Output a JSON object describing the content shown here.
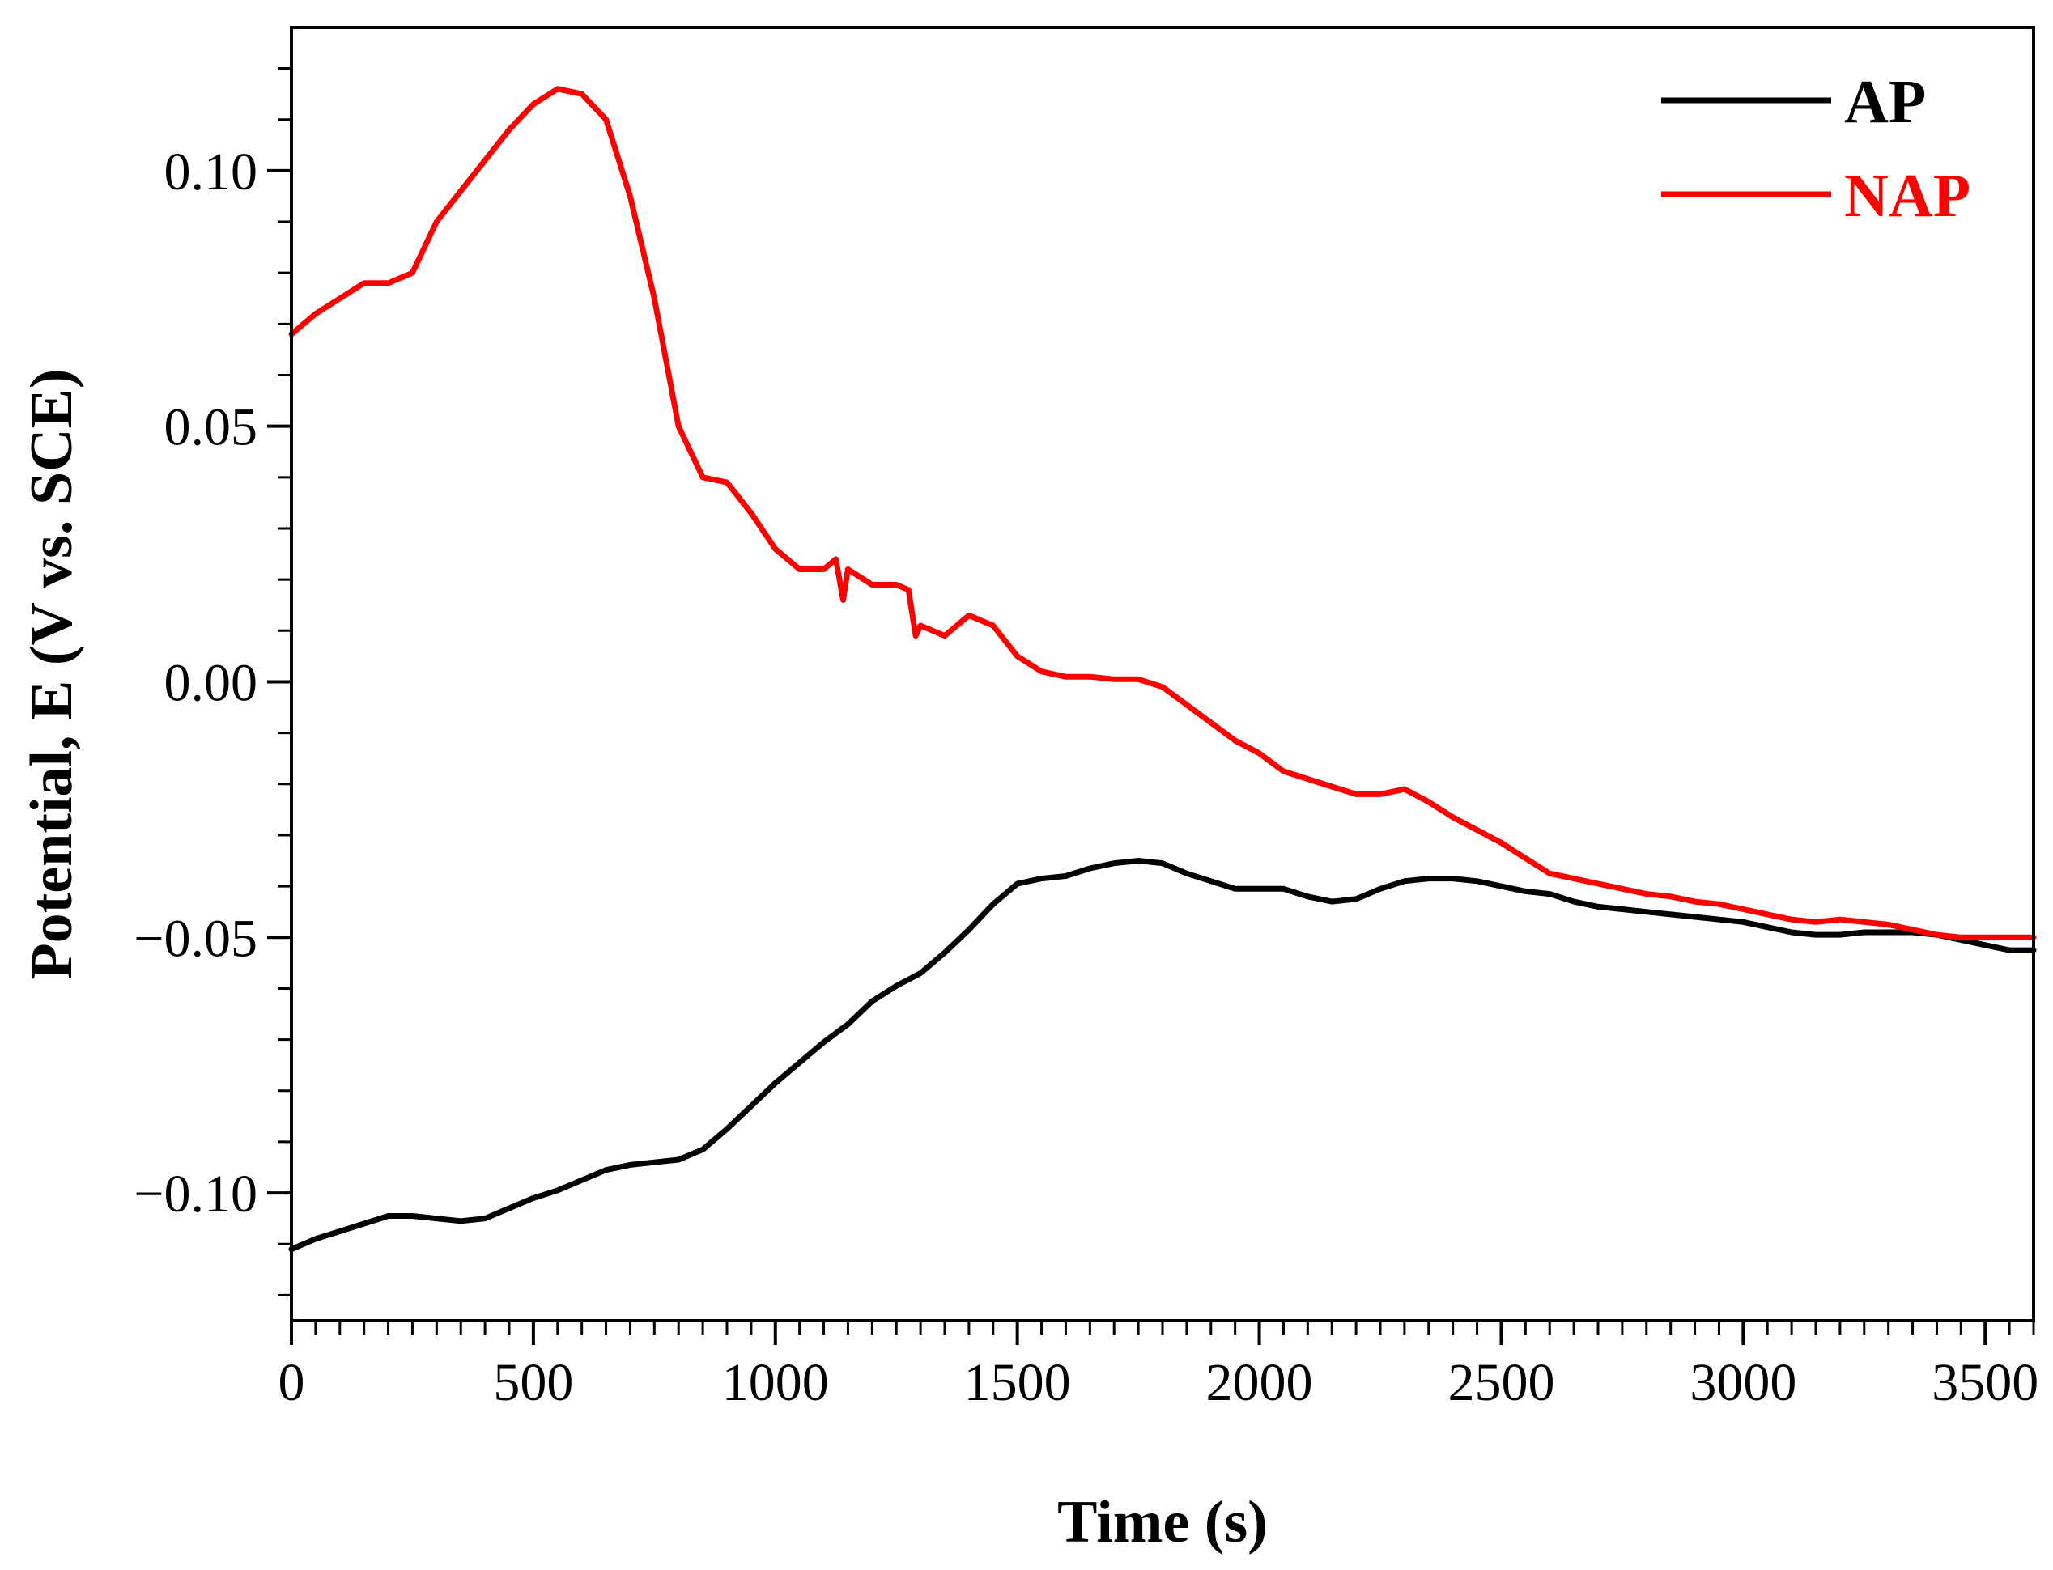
{
  "chart_data": {
    "type": "line",
    "title": "",
    "xlabel": "Time (s)",
    "ylabel": "Potential, E (V vs. SCE)",
    "xlim": [
      0,
      3600
    ],
    "ylim": [
      -0.125,
      0.128
    ],
    "x_ticks": [
      0,
      500,
      1000,
      1500,
      2000,
      2500,
      3000,
      3500
    ],
    "x_tick_labels": [
      "0",
      "500",
      "1000",
      "1500",
      "2000",
      "2500",
      "3000",
      "3500"
    ],
    "y_ticks": [
      0.1,
      0.05,
      0.0,
      -0.05,
      -0.1
    ],
    "y_tick_labels": [
      "0.10",
      "0.05",
      "0.00",
      "−0.05",
      "−0.10"
    ],
    "grid": false,
    "legend_position": "top-right",
    "series": [
      {
        "name": "AP",
        "color": "#000000",
        "x": [
          0,
          50,
          100,
          150,
          200,
          250,
          300,
          350,
          400,
          450,
          500,
          550,
          600,
          650,
          700,
          750,
          800,
          850,
          900,
          950,
          1000,
          1050,
          1100,
          1150,
          1200,
          1250,
          1300,
          1350,
          1400,
          1450,
          1500,
          1550,
          1600,
          1650,
          1700,
          1750,
          1800,
          1850,
          1900,
          1950,
          2000,
          2050,
          2100,
          2150,
          2200,
          2250,
          2300,
          2350,
          2400,
          2450,
          2500,
          2550,
          2600,
          2650,
          2700,
          2750,
          2800,
          2850,
          2900,
          2950,
          3000,
          3050,
          3100,
          3150,
          3200,
          3250,
          3300,
          3350,
          3400,
          3450,
          3500,
          3550,
          3600
        ],
        "values": [
          -0.111,
          -0.109,
          -0.1075,
          -0.106,
          -0.1045,
          -0.1045,
          -0.105,
          -0.1055,
          -0.105,
          -0.103,
          -0.101,
          -0.0995,
          -0.0975,
          -0.0955,
          -0.0945,
          -0.094,
          -0.0935,
          -0.0915,
          -0.0875,
          -0.083,
          -0.0785,
          -0.0745,
          -0.0705,
          -0.067,
          -0.0625,
          -0.0595,
          -0.057,
          -0.053,
          -0.0485,
          -0.0435,
          -0.0395,
          -0.0385,
          -0.038,
          -0.0365,
          -0.0355,
          -0.035,
          -0.0355,
          -0.0375,
          -0.039,
          -0.0405,
          -0.0405,
          -0.0405,
          -0.042,
          -0.043,
          -0.0425,
          -0.0405,
          -0.039,
          -0.0385,
          -0.0385,
          -0.039,
          -0.04,
          -0.041,
          -0.0415,
          -0.043,
          -0.044,
          -0.0445,
          -0.045,
          -0.0455,
          -0.046,
          -0.0465,
          -0.047,
          -0.048,
          -0.049,
          -0.0495,
          -0.0495,
          -0.049,
          -0.049,
          -0.049,
          -0.0495,
          -0.0505,
          -0.0515,
          -0.0525,
          -0.0525
        ]
      },
      {
        "name": "NAP",
        "color": "#ff0000",
        "x": [
          0,
          50,
          100,
          150,
          200,
          250,
          300,
          350,
          400,
          450,
          500,
          550,
          600,
          650,
          700,
          750,
          800,
          850,
          900,
          950,
          1000,
          1050,
          1100,
          1125,
          1140,
          1150,
          1200,
          1250,
          1275,
          1290,
          1300,
          1350,
          1400,
          1450,
          1500,
          1550,
          1600,
          1650,
          1700,
          1750,
          1800,
          1850,
          1900,
          1950,
          2000,
          2050,
          2100,
          2150,
          2200,
          2250,
          2300,
          2350,
          2400,
          2450,
          2500,
          2550,
          2600,
          2650,
          2700,
          2750,
          2800,
          2850,
          2900,
          2950,
          3000,
          3050,
          3100,
          3150,
          3200,
          3250,
          3300,
          3350,
          3400,
          3450,
          3500,
          3550,
          3600
        ],
        "values": [
          0.068,
          0.072,
          0.075,
          0.078,
          0.078,
          0.08,
          0.09,
          0.096,
          0.102,
          0.108,
          0.113,
          0.116,
          0.115,
          0.11,
          0.095,
          0.075,
          0.05,
          0.04,
          0.039,
          0.033,
          0.026,
          0.022,
          0.022,
          0.024,
          0.016,
          0.022,
          0.019,
          0.019,
          0.018,
          0.009,
          0.011,
          0.009,
          0.013,
          0.011,
          0.005,
          0.002,
          0.001,
          0.001,
          0.0005,
          0.0005,
          -0.001,
          -0.0045,
          -0.008,
          -0.0115,
          -0.014,
          -0.0175,
          -0.019,
          -0.0205,
          -0.022,
          -0.022,
          -0.021,
          -0.0235,
          -0.0265,
          -0.029,
          -0.0315,
          -0.0345,
          -0.0375,
          -0.0385,
          -0.0395,
          -0.0405,
          -0.0415,
          -0.042,
          -0.043,
          -0.0435,
          -0.0445,
          -0.0455,
          -0.0465,
          -0.047,
          -0.0465,
          -0.047,
          -0.0475,
          -0.0485,
          -0.0495,
          -0.05,
          -0.05,
          -0.05,
          -0.05
        ]
      }
    ]
  }
}
